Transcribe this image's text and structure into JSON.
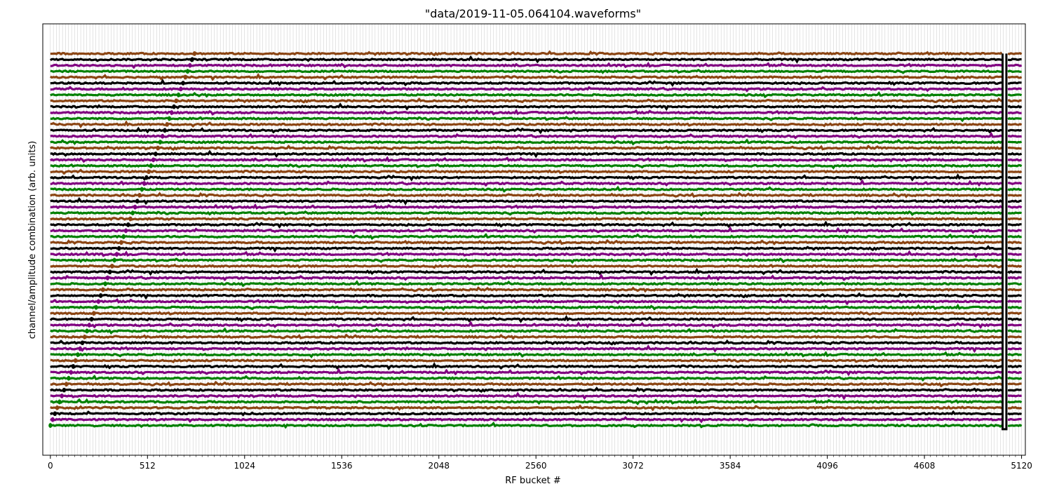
{
  "chart_data": {
    "type": "line",
    "title": "\"data/2019-11-05.064104.waveforms\"",
    "xlabel": "RF bucket #",
    "ylabel": "channel/amplitude combination (arb. units)",
    "xlim": [
      -40,
      5140
    ],
    "ylim": [
      -0.08,
      1.08
    ],
    "xticks": [
      0,
      512,
      1024,
      1536,
      2048,
      2560,
      3072,
      3584,
      4096,
      4608,
      5120
    ],
    "grid_x_step": 16,
    "minor_tick_step": 32,
    "y_ticks": "none",
    "series_colors": [
      "#008000",
      "#800080",
      "#000000",
      "#8B4513"
    ],
    "n_traces": 64,
    "x_range": [
      0,
      5120
    ],
    "diagonal_marker": {
      "description": "marker dots ramping from bottom-left to top",
      "x_start": 0,
      "x_end": 760,
      "y_start": 0.0,
      "y_end": 1.0
    },
    "end_bracket": {
      "x_left": 5020,
      "x_right": 5040,
      "y_bottom": -0.01,
      "y_top": 1.0,
      "color": "#000000"
    }
  }
}
